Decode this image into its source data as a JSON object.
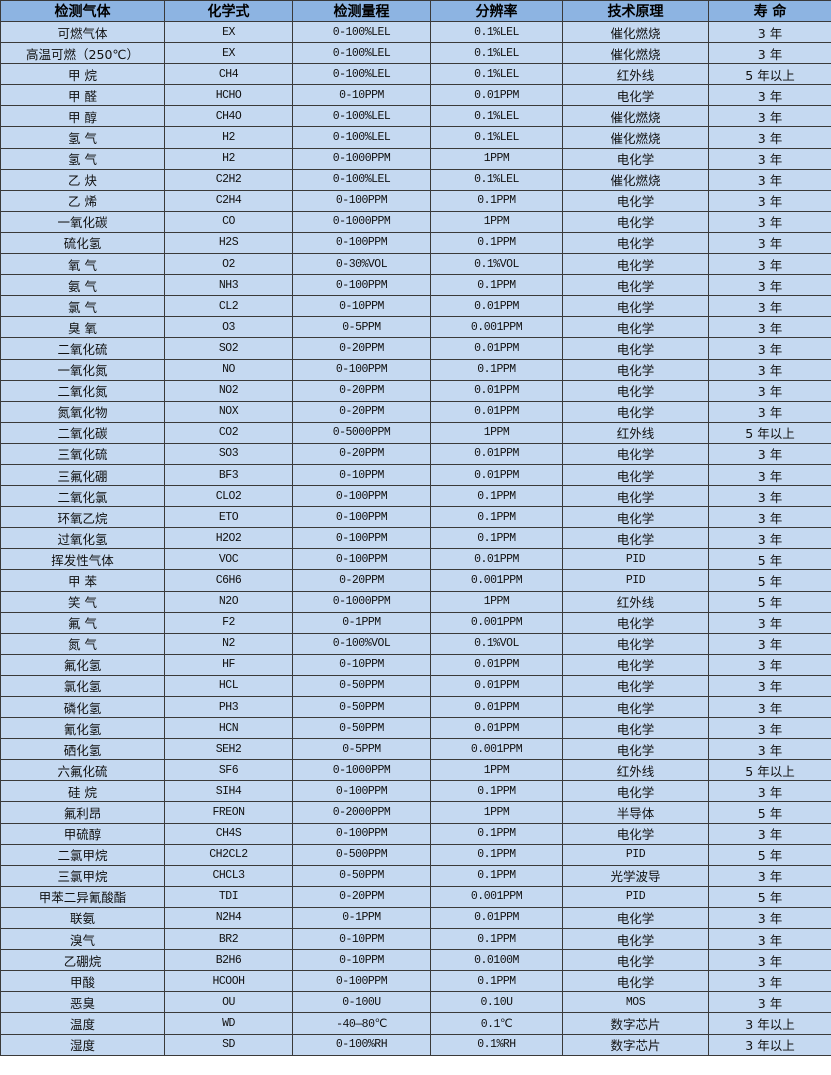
{
  "colors": {
    "header_bg": "#8db4e2",
    "row_bg": "#c5d9f1",
    "border": "#3a3a3a"
  },
  "headers": [
    "检测气体",
    "化学式",
    "检测量程",
    "分辨率",
    "技术原理",
    "寿 命"
  ],
  "rows": [
    [
      "可燃气体",
      "EX",
      "0-100%LEL",
      "0.1%LEL",
      "催化燃烧",
      "3 年"
    ],
    [
      "高温可燃（250℃）",
      "EX",
      "0-100%LEL",
      "0.1%LEL",
      "催化燃烧",
      "3 年"
    ],
    [
      "甲 烷",
      "CH4",
      "0-100%LEL",
      "0.1%LEL",
      "红外线",
      "5 年以上"
    ],
    [
      "甲 醛",
      "HCHO",
      "0-10PPM",
      "0.01PPM",
      "电化学",
      "3 年"
    ],
    [
      "甲 醇",
      "CH4O",
      "0-100%LEL",
      "0.1%LEL",
      "催化燃烧",
      "3 年"
    ],
    [
      "氢 气",
      "H2",
      "0-100%LEL",
      "0.1%LEL",
      "催化燃烧",
      "3 年"
    ],
    [
      "氢 气",
      "H2",
      "0-1000PPM",
      "1PPM",
      "电化学",
      "3 年"
    ],
    [
      "乙 炔",
      "C2H2",
      "0-100%LEL",
      "0.1%LEL",
      "催化燃烧",
      "3 年"
    ],
    [
      "乙 烯",
      "C2H4",
      "0-100PPM",
      "0.1PPM",
      "电化学",
      "3 年"
    ],
    [
      "一氧化碳",
      "CO",
      "0-1000PPM",
      "1PPM",
      "电化学",
      "3 年"
    ],
    [
      "硫化氢",
      "H2S",
      "0-100PPM",
      "0.1PPM",
      "电化学",
      "3 年"
    ],
    [
      "氧 气",
      "O2",
      "0-30%VOL",
      "0.1%VOL",
      "电化学",
      "3 年"
    ],
    [
      "氨 气",
      "NH3",
      "0-100PPM",
      "0.1PPM",
      "电化学",
      "3 年"
    ],
    [
      "氯 气",
      "CL2",
      "0-10PPM",
      "0.01PPM",
      "电化学",
      "3 年"
    ],
    [
      "臭 氧",
      "O3",
      "0-5PPM",
      "0.001PPM",
      "电化学",
      "3 年"
    ],
    [
      "二氧化硫",
      "SO2",
      "0-20PPM",
      "0.01PPM",
      "电化学",
      "3 年"
    ],
    [
      "一氧化氮",
      "NO",
      "0-100PPM",
      "0.1PPM",
      "电化学",
      "3 年"
    ],
    [
      "二氧化氮",
      "NO2",
      "0-20PPM",
      "0.01PPM",
      "电化学",
      "3 年"
    ],
    [
      "氮氧化物",
      "NOX",
      "0-20PPM",
      "0.01PPM",
      "电化学",
      "3 年"
    ],
    [
      "二氧化碳",
      "CO2",
      "0-5000PPM",
      "1PPM",
      "红外线",
      "5 年以上"
    ],
    [
      "三氧化硫",
      "SO3",
      "0-20PPM",
      "0.01PPM",
      "电化学",
      "3 年"
    ],
    [
      "三氟化硼",
      "BF3",
      "0-10PPM",
      "0.01PPM",
      "电化学",
      "3 年"
    ],
    [
      "二氧化氯",
      "CLO2",
      "0-100PPM",
      "0.1PPM",
      "电化学",
      "3 年"
    ],
    [
      "环氧乙烷",
      "ETO",
      "0-100PPM",
      "0.1PPM",
      "电化学",
      "3 年"
    ],
    [
      "过氧化氢",
      "H2O2",
      "0-100PPM",
      "0.1PPM",
      "电化学",
      "3 年"
    ],
    [
      "挥发性气体",
      "VOC",
      "0-100PPM",
      "0.01PPM",
      "PID",
      "5 年"
    ],
    [
      "甲 苯",
      "C6H6",
      "0-20PPM",
      "0.001PPM",
      "PID",
      "5 年"
    ],
    [
      "笑 气",
      "N2O",
      "0-1000PPM",
      "1PPM",
      "红外线",
      "5 年"
    ],
    [
      "氟 气",
      "F2",
      "0-1PPM",
      "0.001PPM",
      "电化学",
      "3 年"
    ],
    [
      "氮 气",
      "N2",
      "0-100%VOL",
      "0.1%VOL",
      "电化学",
      "3 年"
    ],
    [
      "氟化氢",
      "HF",
      "0-10PPM",
      "0.01PPM",
      "电化学",
      "3 年"
    ],
    [
      "氯化氢",
      "HCL",
      "0-50PPM",
      "0.01PPM",
      "电化学",
      "3 年"
    ],
    [
      "磷化氢",
      "PH3",
      "0-50PPM",
      "0.01PPM",
      "电化学",
      "3 年"
    ],
    [
      "氰化氢",
      "HCN",
      "0-50PPM",
      "0.01PPM",
      "电化学",
      "3 年"
    ],
    [
      "硒化氢",
      "SEH2",
      "0-5PPM",
      "0.001PPM",
      "电化学",
      "3 年"
    ],
    [
      "六氟化硫",
      "SF6",
      "0-1000PPM",
      "1PPM",
      "红外线",
      "5 年以上"
    ],
    [
      "硅 烷",
      "SIH4",
      "0-100PPM",
      "0.1PPM",
      "电化学",
      "3 年"
    ],
    [
      "氟利昂",
      "FREON",
      "0-2000PPM",
      "1PPM",
      "半导体",
      "5 年"
    ],
    [
      "甲硫醇",
      "CH4S",
      "0-100PPM",
      "0.1PPM",
      "电化学",
      "3 年"
    ],
    [
      "二氯甲烷",
      "CH2CL2",
      "0-500PPM",
      "0.1PPM",
      "PID",
      "5 年"
    ],
    [
      "三氯甲烷",
      "CHCL3",
      "0-50PPM",
      "0.1PPM",
      "光学波导",
      "3 年"
    ],
    [
      "甲苯二异氰酸酯",
      "TDI",
      "0-20PPM",
      "0.001PPM",
      "PID",
      "5 年"
    ],
    [
      "联氨",
      "N2H4",
      "0-1PPM",
      "0.01PPM",
      "电化学",
      "3 年"
    ],
    [
      "溴气",
      "BR2",
      "0-10PPM",
      "0.1PPM",
      "电化学",
      "3 年"
    ],
    [
      "乙硼烷",
      "B2H6",
      "0-10PPM",
      "0.0100M",
      "电化学",
      "3 年"
    ],
    [
      "甲酸",
      "HCOOH",
      "0-100PPM",
      "0.1PPM",
      "电化学",
      "3 年"
    ],
    [
      "恶臭",
      "OU",
      "0-100U",
      "0.10U",
      "MOS",
      "3 年"
    ],
    [
      "温度",
      "WD",
      "-40—80℃",
      "0.1℃",
      "数字芯片",
      "3 年以上"
    ],
    [
      "湿度",
      "SD",
      "0-100%RH",
      "0.1%RH",
      "数字芯片",
      "3 年以上"
    ]
  ]
}
